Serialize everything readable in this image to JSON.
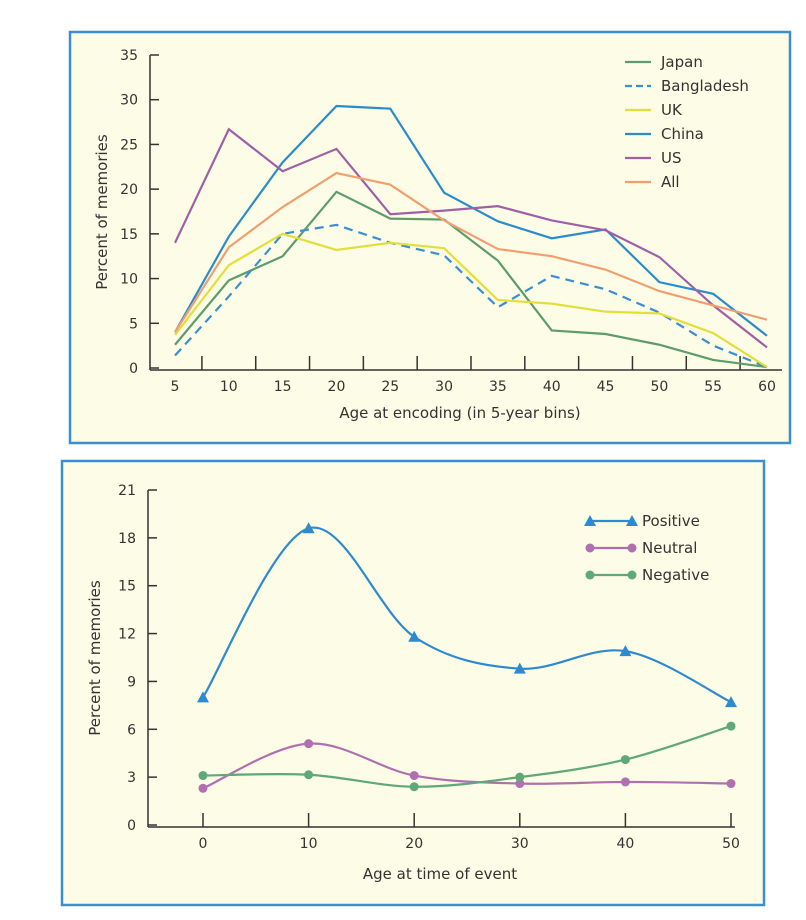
{
  "chart_data": [
    {
      "type": "line",
      "xlabel": "Age at encoding (in 5-year bins)",
      "ylabel": "Percent of memories",
      "x": [
        5,
        10,
        15,
        20,
        25,
        30,
        35,
        40,
        45,
        50,
        55,
        60
      ],
      "xlim": [
        5,
        60
      ],
      "ylim": [
        0,
        35
      ],
      "yticks": [
        0,
        5,
        10,
        15,
        20,
        25,
        30,
        35
      ],
      "legend": "top-right",
      "series": [
        {
          "name": "Japan",
          "color": "#5e9c6a",
          "dashed": false,
          "values": [
            2.6,
            9.8,
            12.5,
            19.7,
            16.7,
            16.6,
            12.0,
            4.2,
            3.8,
            2.6,
            0.9,
            0.1
          ]
        },
        {
          "name": "Bangladesh",
          "color": "#3a8fd0",
          "dashed": true,
          "values": [
            1.4,
            8.0,
            15.0,
            16.0,
            14.0,
            12.6,
            6.8,
            10.3,
            8.8,
            6.2,
            2.5,
            0.1
          ]
        },
        {
          "name": "UK",
          "color": "#e2df3a",
          "dashed": false,
          "values": [
            3.7,
            11.5,
            15.0,
            13.2,
            14.0,
            13.4,
            7.6,
            7.2,
            6.3,
            6.1,
            3.9,
            0.1
          ]
        },
        {
          "name": "China",
          "color": "#2a8ccc",
          "dashed": false,
          "values": [
            4.0,
            14.7,
            23.0,
            29.3,
            29.0,
            19.6,
            16.4,
            14.5,
            15.5,
            9.6,
            8.3,
            3.6
          ]
        },
        {
          "name": "US",
          "color": "#a060a8",
          "dashed": false,
          "values": [
            14.0,
            26.7,
            22.0,
            24.5,
            17.2,
            17.6,
            18.1,
            16.5,
            15.4,
            12.4,
            7.0,
            2.3
          ]
        },
        {
          "name": "All",
          "color": "#f0a070",
          "dashed": false,
          "values": [
            4.0,
            13.5,
            18.0,
            21.8,
            20.5,
            16.5,
            13.3,
            12.5,
            11.0,
            8.6,
            7.0,
            5.4
          ]
        }
      ]
    },
    {
      "type": "line",
      "xlabel": "Age at time of event",
      "ylabel": "Percent of memories",
      "x": [
        0,
        10,
        20,
        30,
        40,
        50
      ],
      "xlim": [
        0,
        50
      ],
      "ylim": [
        0,
        21
      ],
      "yticks": [
        0,
        3,
        6,
        9,
        12,
        15,
        18,
        21
      ],
      "legend": "top-right",
      "smooth": true,
      "series": [
        {
          "name": "Positive",
          "color": "#2e8ad0",
          "marker": "triangle",
          "values": [
            8.0,
            18.6,
            11.8,
            9.8,
            10.9,
            7.7
          ]
        },
        {
          "name": "Neutral",
          "color": "#b070b0",
          "marker": "circle",
          "values": [
            2.3,
            5.1,
            3.1,
            2.6,
            2.7,
            2.6
          ]
        },
        {
          "name": "Negative",
          "color": "#5fa878",
          "marker": "circle",
          "values": [
            3.1,
            3.15,
            2.4,
            3.0,
            4.1,
            6.2
          ]
        }
      ]
    }
  ]
}
